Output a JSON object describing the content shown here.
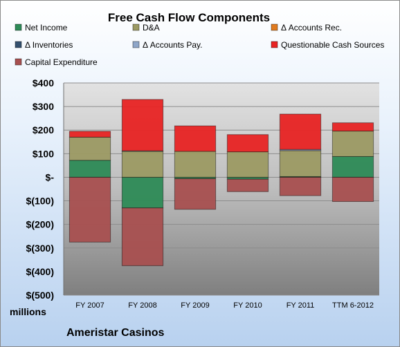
{
  "chart_data": {
    "type": "bar",
    "stacked": true,
    "title": "Free Cash Flow Components",
    "categories": [
      "FY 2007",
      "FY 2008",
      "FY 2009",
      "FY 2010",
      "FY 2011",
      "TTM 6-2012"
    ],
    "ylim": [
      -500,
      400
    ],
    "yticks": [
      400,
      300,
      200,
      100,
      0,
      -100,
      -200,
      -300,
      -400,
      -500
    ],
    "ytick_labels": [
      "$400",
      "$300",
      "$200",
      "$100",
      "$-",
      "$(100)",
      "$(200)",
      "$(300)",
      "$(400)",
      "$(500)"
    ],
    "unit_label": "millions",
    "company": "Ameristar Casinos",
    "grid": true,
    "legend_position": "top",
    "series": [
      {
        "name": "Net Income",
        "color": "#2e8b57",
        "values": [
          72,
          -130,
          -6,
          -8,
          3,
          88
        ]
      },
      {
        "name": "D&A",
        "color": "#9c9a64",
        "values": [
          98,
          110,
          110,
          108,
          110,
          108
        ]
      },
      {
        "name": "Δ Accounts Rec.",
        "color": "#e07b1f",
        "values": [
          0,
          0,
          0,
          0,
          0,
          0
        ]
      },
      {
        "name": "Δ Inventories",
        "color": "#34506e",
        "values": [
          0,
          0,
          0,
          0,
          0,
          0
        ]
      },
      {
        "name": "Δ Accounts Pay.",
        "color": "#8fa6c8",
        "values": [
          0,
          2,
          0,
          0,
          5,
          0
        ]
      },
      {
        "name": "Questionable Cash Sources",
        "color": "#e82424",
        "values": [
          25,
          218,
          108,
          73,
          150,
          35
        ]
      },
      {
        "name": "Capital Expenditure",
        "color": "#a85050",
        "values": [
          -275,
          -245,
          -130,
          -53,
          -78,
          -103
        ]
      }
    ]
  }
}
